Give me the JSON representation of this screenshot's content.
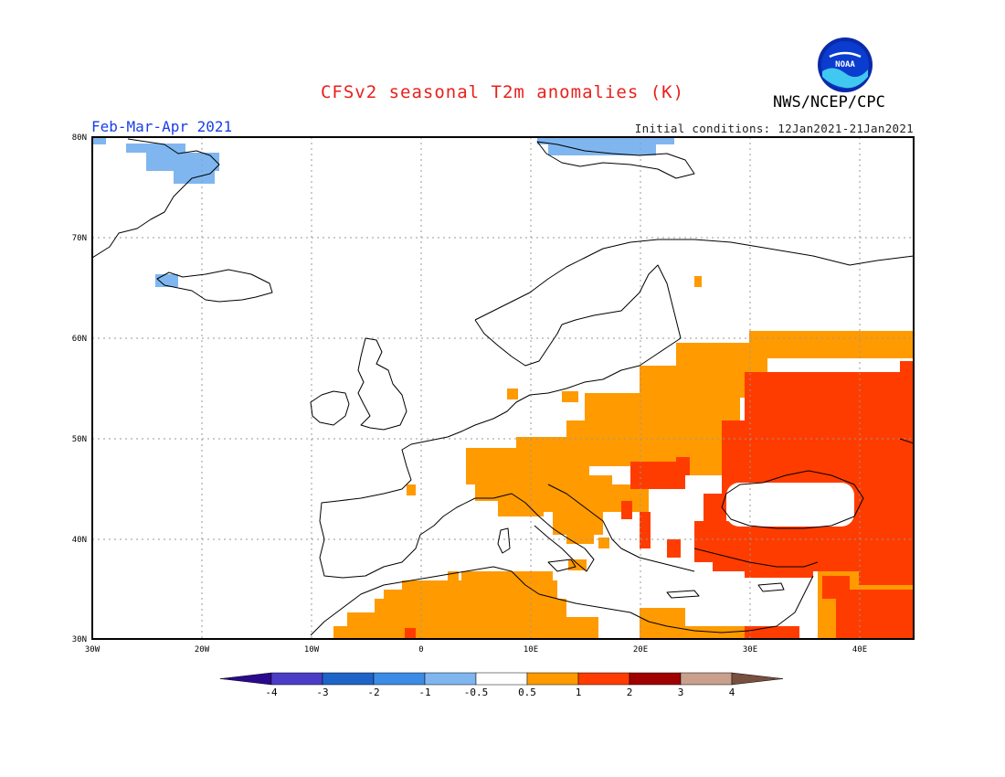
{
  "header": {
    "title": "CFSv2 seasonal T2m anomalies (K)",
    "agency": "NWS/NCEP/CPC",
    "period": "Feb-Mar-Apr 2021",
    "init_conditions": "Initial conditions: 12Jan2021-21Jan2021",
    "logo_text": "NOAA"
  },
  "map": {
    "lon_range": [
      -30,
      45
    ],
    "lat_range": [
      30,
      80
    ],
    "lat_ticks": [
      "30N",
      "40N",
      "50N",
      "60N",
      "70N",
      "80N"
    ],
    "lon_ticks": [
      "30W",
      "20W",
      "10W",
      "0",
      "10E",
      "20E",
      "30E",
      "40E"
    ]
  },
  "legend": {
    "labels": [
      "-4",
      "-3",
      "-2",
      "-1",
      "-0.5",
      "0.5",
      "1",
      "2",
      "3",
      "4"
    ],
    "colors": [
      "#2a0a8c",
      "#4b3cc8",
      "#1e64c8",
      "#3c8ce6",
      "#7fb6f0",
      "#ffffff",
      "#ff9a00",
      "#ff3c00",
      "#a00000",
      "#c8a08c",
      "#785040"
    ]
  }
}
